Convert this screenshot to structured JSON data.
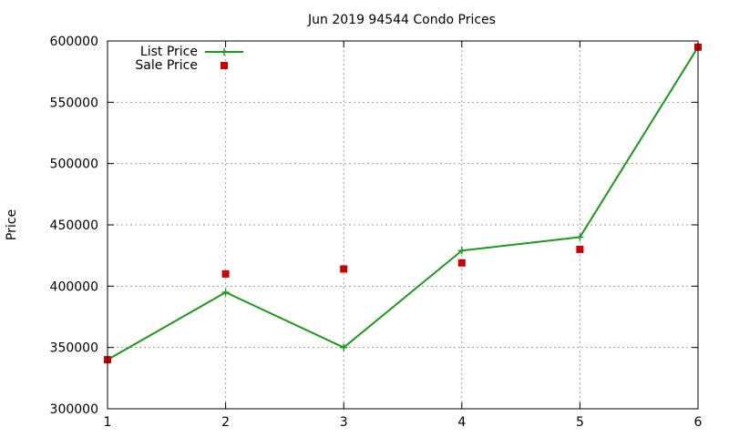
{
  "chart_data": {
    "type": "line",
    "title": "Jun 2019 94544 Condo Prices",
    "xlabel": "",
    "ylabel": "Price",
    "x": [
      1,
      2,
      3,
      4,
      5,
      6
    ],
    "xlim": [
      1,
      6
    ],
    "ylim": [
      300000,
      600000
    ],
    "xticks": [
      "1",
      "2",
      "3",
      "4",
      "5",
      "6"
    ],
    "yticks": [
      "300000",
      "350000",
      "400000",
      "450000",
      "500000",
      "550000",
      "600000"
    ],
    "grid": true,
    "legend_position": "top-left",
    "series": [
      {
        "name": "List Price",
        "style": "line-with-plus-markers",
        "color": "#1a9a1a",
        "values": [
          340000,
          395000,
          350000,
          429000,
          440000,
          595000
        ]
      },
      {
        "name": "Sale Price",
        "style": "square-markers",
        "color": "#cc0000",
        "values": [
          340000,
          410000,
          414000,
          419000,
          430000,
          595000
        ]
      }
    ]
  }
}
